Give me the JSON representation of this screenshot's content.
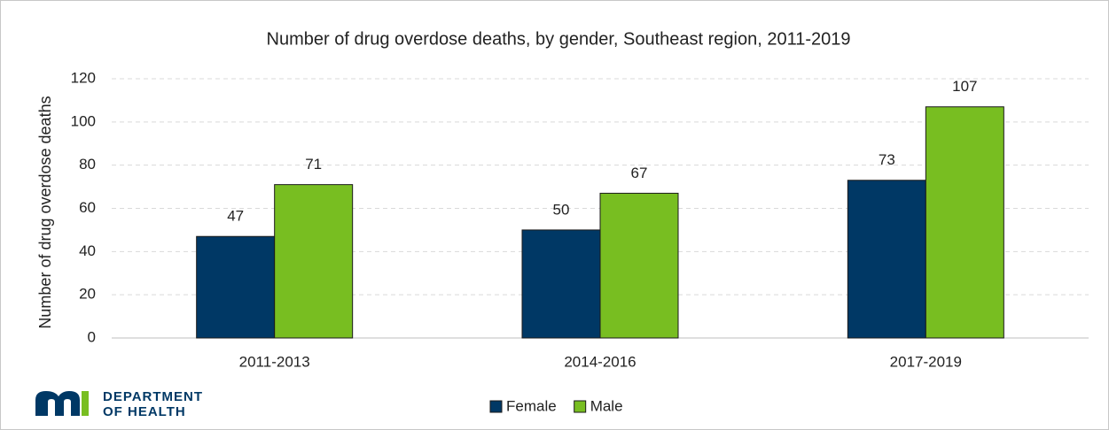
{
  "chart_data": {
    "type": "bar",
    "title": "Number of drug overdose deaths, by gender, Southeast region, 2011-2019",
    "y_label": "Number of drug overdose deaths",
    "categories": [
      "2011-2013",
      "2014-2016",
      "2017-2019"
    ],
    "series": [
      {
        "name": "Female",
        "color": "#003865",
        "values": [
          47,
          50,
          73
        ]
      },
      {
        "name": "Male",
        "color": "#78be21",
        "values": [
          71,
          67,
          107
        ]
      }
    ],
    "ylim": [
      0,
      120
    ],
    "yticks": [
      0,
      20,
      40,
      60,
      80,
      100,
      120
    ],
    "grid": true,
    "legend": "bottom"
  },
  "logo": {
    "line1": "DEPARTMENT",
    "line2": "OF HEALTH"
  }
}
